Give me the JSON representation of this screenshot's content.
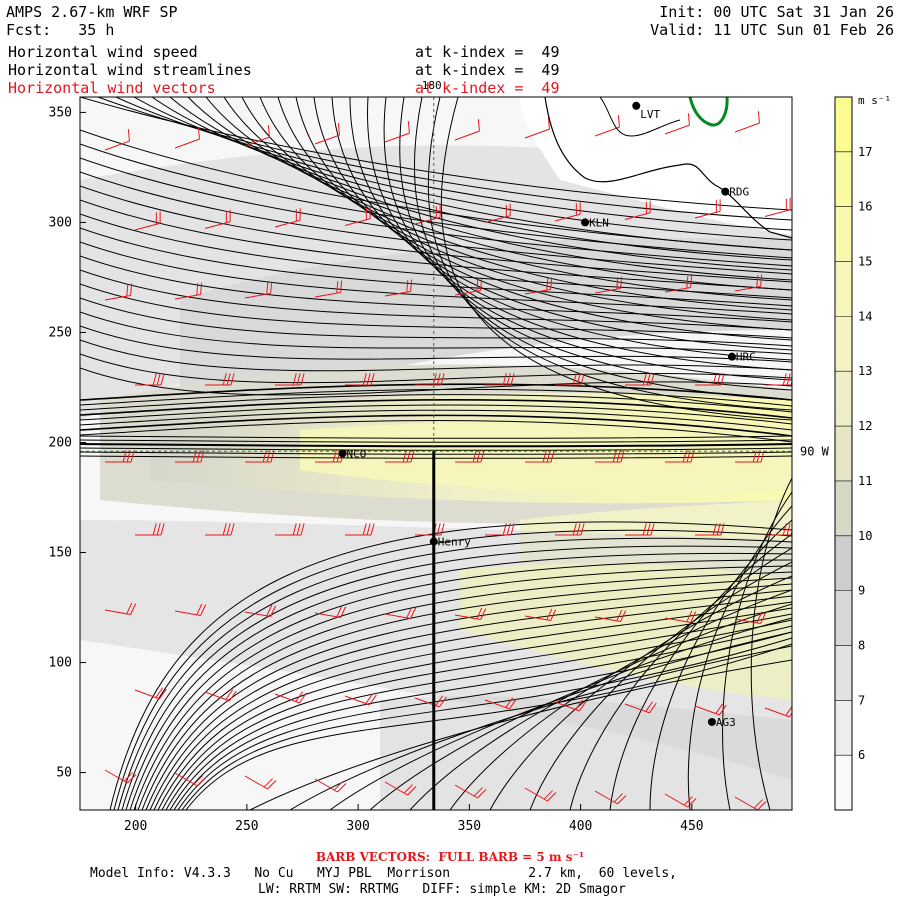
{
  "header": {
    "model": "AMPS 2.67-km WRF SP",
    "fcst_label": "Fcst:",
    "fcst_value": "35 h",
    "init": "Init: 00 UTC Sat 31 Jan 26",
    "valid": "Valid: 11 UTC Sun 01 Feb 26"
  },
  "fields": [
    {
      "name": "Horizontal wind speed",
      "level": "at k-index =  49",
      "color": "#000000"
    },
    {
      "name": "Horizontal wind streamlines",
      "level": "at k-index =  49",
      "color": "#000000"
    },
    {
      "name": "Horizontal wind vectors",
      "level": "at k-index =  49",
      "color": "#e8151b"
    }
  ],
  "axes": {
    "x_ticks": [
      "200",
      "250",
      "300",
      "350",
      "400",
      "450"
    ],
    "y_ticks": [
      "50",
      "100",
      "150",
      "200",
      "250",
      "300",
      "350"
    ],
    "x_range": [
      175,
      495
    ],
    "y_range": [
      33,
      357
    ]
  },
  "gridlines": {
    "meridian_label": "180",
    "parallel_label": "90 W",
    "meridian_x": 334,
    "parallel_y": 196
  },
  "stations": [
    {
      "name": "LVT",
      "x": 425,
      "y": 353
    },
    {
      "name": "RDG",
      "x": 465,
      "y": 314
    },
    {
      "name": "KLN",
      "x": 402,
      "y": 300
    },
    {
      "name": "HRC",
      "x": 468,
      "y": 239
    },
    {
      "name": "NCO",
      "x": 293,
      "y": 195
    },
    {
      "name": "Henry",
      "x": 334,
      "y": 155
    },
    {
      "name": "AG3",
      "x": 459,
      "y": 73
    }
  ],
  "colorbar": {
    "unit": "m s⁻¹",
    "levels": [
      "6",
      "7",
      "8",
      "9",
      "10",
      "11",
      "12",
      "13",
      "14",
      "15",
      "16",
      "17"
    ],
    "colors": [
      "#fafafa",
      "#ededed",
      "#e2e2e2",
      "#d7d7d7",
      "#cdcdcd",
      "#d8d8c6",
      "#e6e6c6",
      "#eeeec8",
      "#f3f3c4",
      "#f6f6bb",
      "#f8f8ae",
      "#fafaa0",
      "#fcfc92"
    ]
  },
  "footer": {
    "barb_note": "BARB VECTORS:  FULL BARB = 5 m s⁻¹",
    "model_info": "Model Info: V4.3.3   No Cu   MYJ PBL  Morrison          2.7 km,  60 levels,",
    "physics": "LW: RRTM SW: RRTMG   DIFF: simple KM: 2D Smagor"
  }
}
